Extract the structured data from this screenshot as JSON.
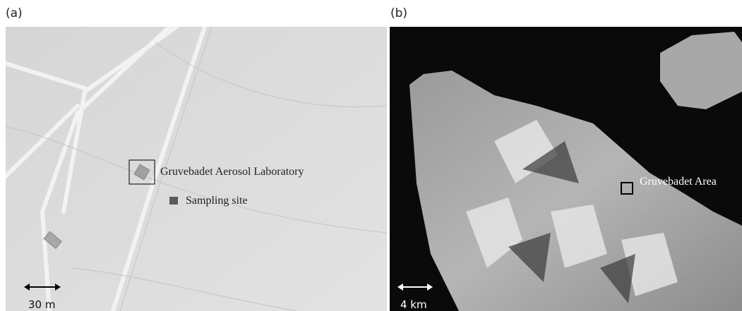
{
  "panels": [
    {
      "label": "(a)",
      "annotations": [
        "Gruvebadet Aerosol Laboratory",
        "Sampling site"
      ],
      "scale": "30 m"
    },
    {
      "label": "(b)",
      "annotations": [
        "Gruvebadet Area"
      ],
      "scale": "4 km"
    }
  ]
}
